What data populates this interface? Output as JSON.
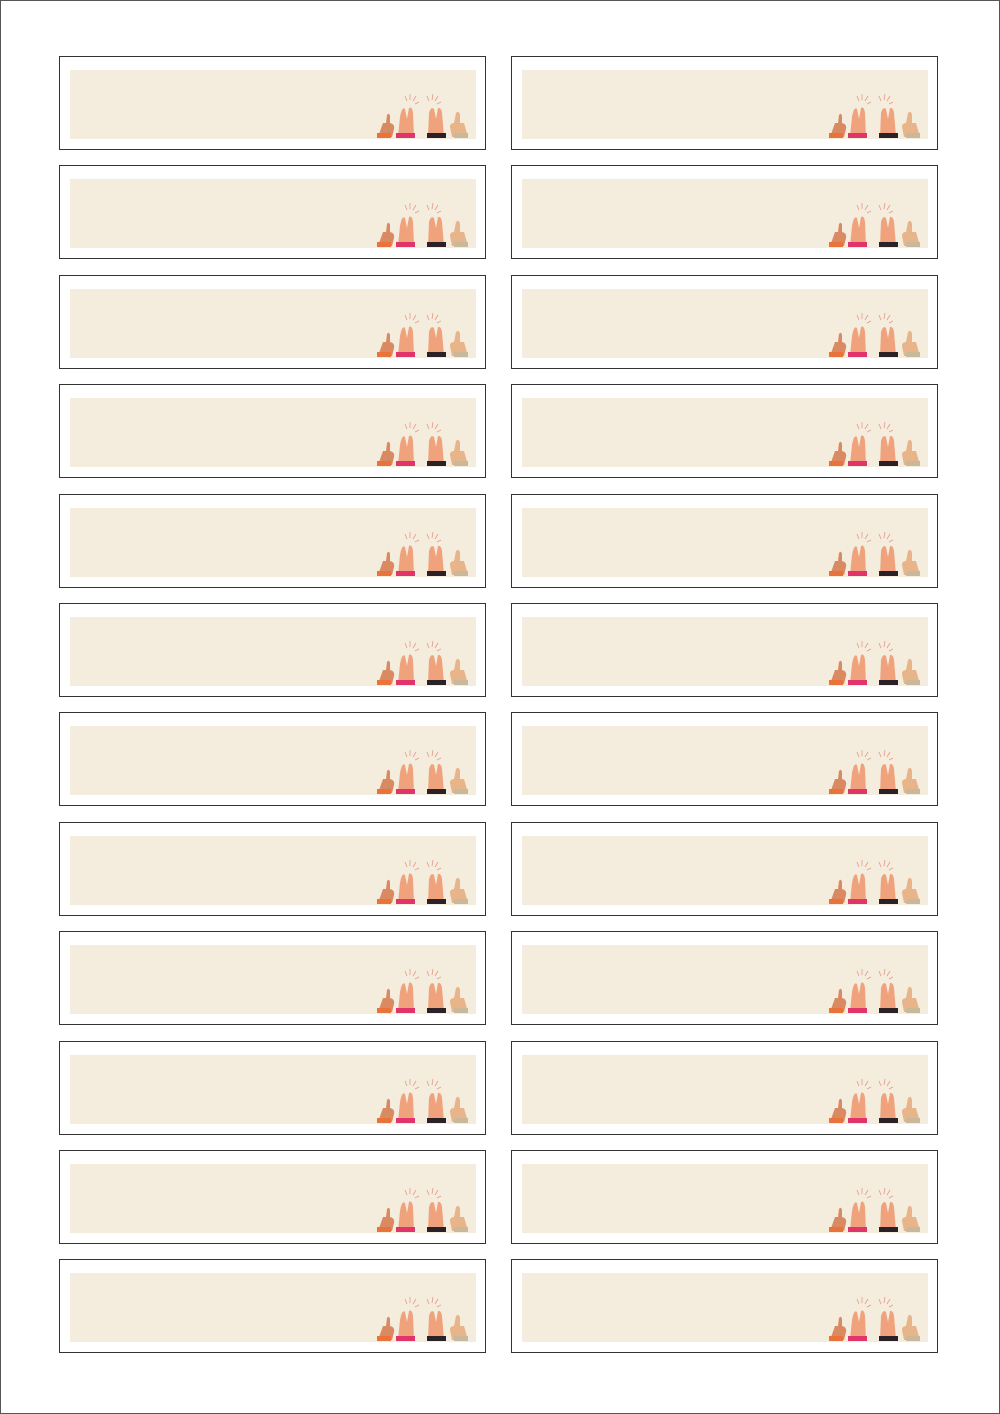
{
  "sheet": {
    "rows": 12,
    "columns": 2,
    "label_fill": "#f4ecdc",
    "border_color": "#333333",
    "illustration": "clapping-hands-icon",
    "skin_colors": [
      "#f0a27c",
      "#d98a62",
      "#e8b48a"
    ],
    "cuff_colors": [
      "#e8743b",
      "#e0356b",
      "#2b2228",
      "#c9b89a"
    ]
  }
}
